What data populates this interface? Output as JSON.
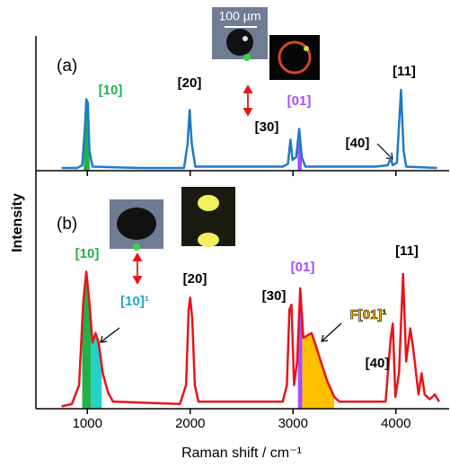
{
  "chart_data": [
    {
      "type": "line",
      "panel_label": "(a)",
      "color": "#1f7bc6",
      "x": [
        750,
        900,
        950,
        975,
        990,
        1005,
        1020,
        1050,
        1500,
        1940,
        1975,
        1995,
        2015,
        2050,
        2900,
        2950,
        2975,
        2995,
        3030,
        3060,
        3085,
        3120,
        3800,
        3920,
        3950,
        3970,
        4010,
        4050,
        4075,
        4100,
        4400
      ],
      "values": [
        0.02,
        0.02,
        0.04,
        0.3,
        0.53,
        0.5,
        0.15,
        0.03,
        0.02,
        0.02,
        0.2,
        0.45,
        0.2,
        0.03,
        0.03,
        0.05,
        0.23,
        0.08,
        0.1,
        0.31,
        0.1,
        0.03,
        0.03,
        0.04,
        0.09,
        0.04,
        0.06,
        0.6,
        0.15,
        0.03,
        0.02
      ],
      "xlim": [
        500,
        4500
      ],
      "ylim": [
        0,
        1
      ],
      "xticks": [
        1000,
        2000,
        3000,
        4000
      ],
      "scale_bar": "100 µm",
      "annotations": [
        {
          "text": "[10]",
          "color": "#22b04b",
          "fill": "#22b04b"
        },
        {
          "text": "[20]",
          "color": "#000000"
        },
        {
          "text": "[30]",
          "color": "#000000"
        },
        {
          "text": "[01]",
          "color": "#a64dff",
          "fill": "#a64dff"
        },
        {
          "text": "[40]",
          "color": "#000000"
        },
        {
          "text": "[11]",
          "color": "#000000"
        }
      ]
    },
    {
      "type": "line",
      "panel_label": "(b)",
      "color": "#e8141a",
      "x": [
        750,
        850,
        920,
        960,
        990,
        1020,
        1050,
        1080,
        1110,
        1150,
        1200,
        1250,
        1900,
        1960,
        1985,
        2000,
        2020,
        2045,
        2080,
        2900,
        2940,
        2965,
        2985,
        3010,
        3040,
        3070,
        3100,
        3140,
        3180,
        3220,
        3270,
        3330,
        3400,
        3450,
        3900,
        3950,
        3970,
        3995,
        4030,
        4070,
        4100,
        4140,
        4170,
        4220,
        4250,
        4280,
        4330,
        4380,
        4420
      ],
      "values": [
        0.01,
        0.02,
        0.1,
        0.45,
        0.58,
        0.45,
        0.28,
        0.32,
        0.28,
        0.15,
        0.07,
        0.03,
        0.02,
        0.1,
        0.42,
        0.47,
        0.38,
        0.1,
        0.03,
        0.03,
        0.1,
        0.42,
        0.44,
        0.1,
        0.2,
        0.51,
        0.3,
        0.31,
        0.32,
        0.27,
        0.2,
        0.12,
        0.05,
        0.03,
        0.03,
        0.3,
        0.36,
        0.05,
        0.15,
        0.57,
        0.2,
        0.34,
        0.25,
        0.06,
        0.15,
        0.06,
        0.04,
        0.06,
        0.03
      ],
      "xlim": [
        500,
        4500
      ],
      "ylim": [
        0,
        1
      ],
      "xticks": [
        1000,
        2000,
        3000,
        4000
      ],
      "xlabel": "Raman shift / cm⁻¹",
      "ylabel": "Intensity",
      "annotations": [
        {
          "text": "[10]",
          "color": "#22b04b",
          "fill": "#22b04b"
        },
        {
          "text": "[10]¹",
          "color": "#26a9c6",
          "fill": "#26d0c6"
        },
        {
          "text": "[20]",
          "color": "#000000"
        },
        {
          "text": "[30]",
          "color": "#000000"
        },
        {
          "text": "[01]",
          "color": "#a64dff",
          "fill": "#a64dff"
        },
        {
          "text": "F[01]¹",
          "color": "#ffc000",
          "fill": "#ffc000"
        },
        {
          "text": "[40]",
          "color": "#000000"
        },
        {
          "text": "[11]",
          "color": "#000000"
        }
      ]
    }
  ]
}
